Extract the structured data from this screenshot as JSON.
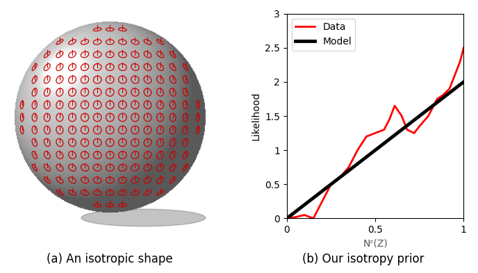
{
  "image": {
    "caption": "(a) An isotropic shape"
  },
  "chart_data": {
    "type": "line",
    "caption": "(b) Our isotropy prior",
    "x_label": "Nᶻ(Z)",
    "y_label": "Likelihood",
    "xlim": [
      0,
      1
    ],
    "ylim": [
      0,
      3
    ],
    "xticks": [
      0,
      0.5,
      1
    ],
    "yticks": [
      0,
      0.5,
      1,
      1.5,
      2,
      2.5,
      3
    ],
    "legend": "upper left",
    "grid": false,
    "series": [
      {
        "name": "Data",
        "color": "#ff0000",
        "line_style": "solid",
        "x": [
          0.0,
          0.05,
          0.1,
          0.15,
          0.2,
          0.25,
          0.3,
          0.35,
          0.4,
          0.45,
          0.5,
          0.55,
          0.58,
          0.61,
          0.65,
          0.68,
          0.72,
          0.75,
          0.8,
          0.85,
          0.88,
          0.92,
          0.95,
          0.98,
          1.0
        ],
        "values": [
          0.0,
          0.02,
          0.05,
          0.0,
          0.25,
          0.5,
          0.6,
          0.75,
          1.0,
          1.2,
          1.25,
          1.3,
          1.45,
          1.65,
          1.5,
          1.3,
          1.25,
          1.35,
          1.5,
          1.75,
          1.8,
          1.9,
          2.1,
          2.3,
          2.5
        ]
      },
      {
        "name": "Model",
        "color": "#000000",
        "line_style": "solid",
        "x": [
          0,
          1
        ],
        "values": [
          0,
          2
        ]
      }
    ]
  }
}
